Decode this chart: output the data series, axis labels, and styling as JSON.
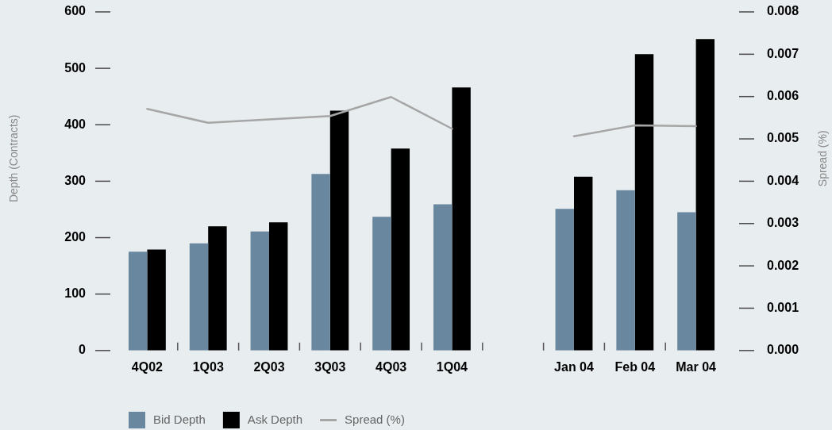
{
  "chart_data": {
    "type": "bar",
    "categories": [
      "4Q02",
      "1Q03",
      "2Q03",
      "3Q03",
      "4Q03",
      "1Q04",
      null,
      "Jan 04",
      "Feb 04",
      "Mar 04"
    ],
    "series": [
      {
        "name": "Bid Depth",
        "color": "#6a87a0",
        "values": [
          175,
          190,
          211,
          313,
          237,
          259,
          null,
          251,
          284,
          245
        ]
      },
      {
        "name": "Ask Depth",
        "color": "#000000",
        "values": [
          179,
          220,
          227,
          425,
          358,
          466,
          null,
          308,
          525,
          552
        ]
      },
      {
        "name": "Spread (%)",
        "type": "line",
        "axis": "y2",
        "color": "#a6a6a6",
        "values": [
          0.00571,
          0.00538,
          0.00546,
          0.00554,
          0.00599,
          0.00524,
          null,
          0.00506,
          0.00532,
          0.0053
        ]
      }
    ],
    "ylabel": "Depth (Contracts)",
    "y2label": "Spread (%)",
    "ylim": [
      0,
      600
    ],
    "yticks": [
      0,
      100,
      200,
      300,
      400,
      500,
      600
    ],
    "y2lim": [
      0,
      0.008
    ],
    "y2ticks": [
      {
        "value": 0,
        "label": "0.000"
      },
      0.001,
      0.002,
      0.003,
      0.004,
      0.005,
      0.006,
      0.007,
      0.008
    ],
    "legend": "bottom left"
  }
}
